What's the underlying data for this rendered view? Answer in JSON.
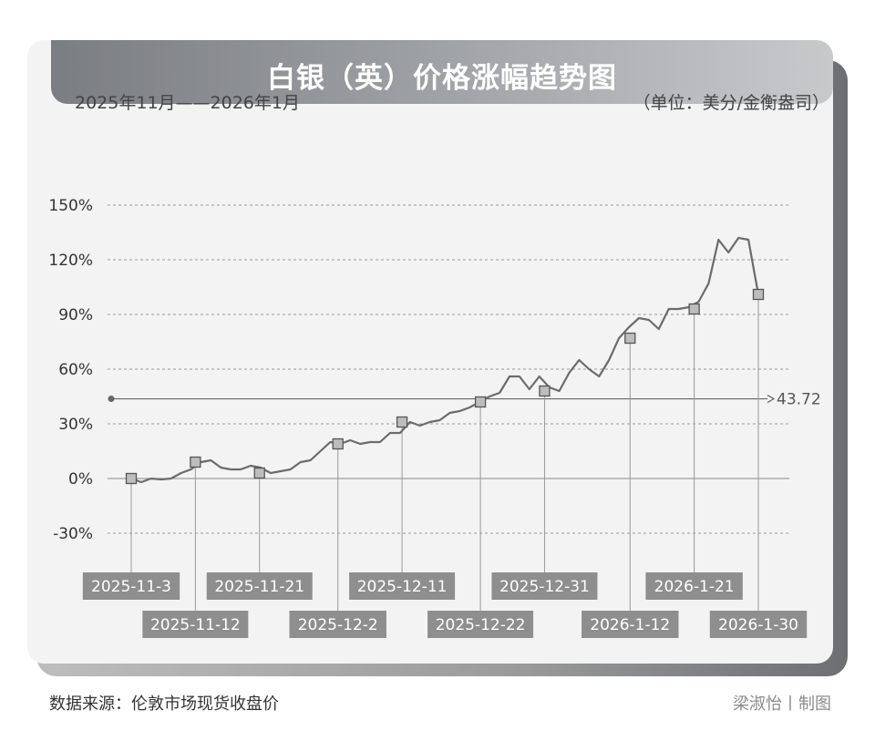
{
  "header": {
    "title": "白银（英）价格涨幅趋势图",
    "subtitle": "2025年11月——2026年1月",
    "unit": "（单位：美分/金衡盎司）"
  },
  "footer": {
    "source": "数据来源：伦敦市场现货收盘价",
    "credit": "梁淑怡丨制图"
  },
  "colors": {
    "line": "#6b6b6b",
    "marker_fill": "#bdbdbd",
    "label_box": "#8e8e8e",
    "grid": "#9a9a9a"
  },
  "chart_data": {
    "type": "line",
    "ylabel": "",
    "xlabel": "",
    "ylim": [
      -30,
      150
    ],
    "yticks": [
      -30,
      0,
      30,
      60,
      90,
      120,
      150
    ],
    "ytick_labels": [
      "-30%",
      "0%",
      "30%",
      "60%",
      "90%",
      "120%",
      "150%"
    ],
    "grid": "horizontal dashed",
    "reference_line": {
      "value": 43.72,
      "label": "43.72"
    },
    "series": [
      {
        "values": [
          0,
          -2,
          0,
          -0.5,
          0,
          3,
          5,
          9,
          10,
          6,
          5,
          5,
          7,
          6,
          3,
          4,
          5,
          9,
          10,
          15,
          20,
          19,
          21,
          19,
          20,
          20,
          25,
          25,
          31,
          29,
          31,
          32,
          36,
          37,
          39,
          42,
          45,
          47,
          56,
          56,
          49,
          56,
          50,
          48,
          58,
          65,
          60,
          56,
          65,
          77,
          83,
          88,
          87,
          82,
          93,
          93,
          94,
          97,
          107,
          131,
          124,
          132,
          131,
          101
        ]
      }
    ],
    "annotated_points": [
      {
        "date": "2025-11-3",
        "value": 0
      },
      {
        "date": "2025-11-12",
        "value": 9
      },
      {
        "date": "2025-11-21",
        "value": 3
      },
      {
        "date": "2025-12-2",
        "value": 19
      },
      {
        "date": "2025-12-11",
        "value": 31
      },
      {
        "date": "2025-12-22",
        "value": 42
      },
      {
        "date": "2025-12-31",
        "value": 48
      },
      {
        "date": "2026-1-12",
        "value": 77
      },
      {
        "date": "2026-1-21",
        "value": 93
      },
      {
        "date": "2026-1-30",
        "value": 101
      }
    ]
  }
}
